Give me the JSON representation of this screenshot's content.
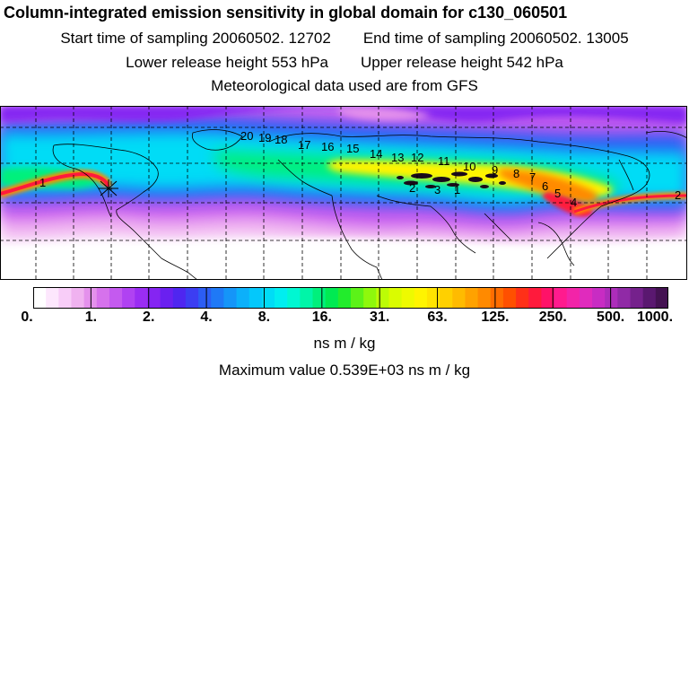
{
  "header": {
    "title": "Column-integrated emission sensitivity in global domain for c130_060501",
    "start_label": "Start time of sampling 20060502. 12702",
    "end_label": "End time of sampling 20060502. 13005",
    "lower_label": "Lower release height  553 hPa",
    "upper_label": "Upper release height  542 hPa",
    "met_label": "Meteorological data used are from GFS"
  },
  "colorbar": {
    "tick_labels": [
      "0.",
      "1.",
      "2.",
      "4.",
      "8.",
      "16.",
      "31.",
      "63.",
      "125.",
      "250.",
      "500.",
      "1000."
    ],
    "colors": [
      "#ffffff",
      "#fde7fd",
      "#f8cdf8",
      "#f0b2f0",
      "#e491ec",
      "#d672ec",
      "#c45aef",
      "#b042f2",
      "#9a2df3",
      "#8525f2",
      "#6a20f0",
      "#4f26f0",
      "#3c3ef2",
      "#2c5df4",
      "#1f79f6",
      "#1595f8",
      "#0cb0fa",
      "#04c8fb",
      "#00dcf6",
      "#00eef0",
      "#00f7d2",
      "#00f5a8",
      "#00f07c",
      "#00ea52",
      "#22ec2c",
      "#5cf218",
      "#8ef80c",
      "#bcfc06",
      "#dafc00",
      "#eefa00",
      "#fff400",
      "#ffe400",
      "#ffd000",
      "#ffbb00",
      "#ffa200",
      "#ff8a00",
      "#ff6d00",
      "#ff5000",
      "#ff3018",
      "#ff1a3c",
      "#ff1268",
      "#ff1b8e",
      "#f224a8",
      "#e02bbd",
      "#c82cc3",
      "#ad2dba",
      "#902aa6",
      "#75218c",
      "#5a1870",
      "#441252"
    ]
  },
  "units": "ns m / kg",
  "max_value": "Maximum value  0.539E+03 ns m / kg",
  "trajectory_labels": [
    "20",
    "19",
    "18",
    "17",
    "16",
    "15",
    "14",
    "13",
    "12",
    "11",
    "10",
    "9",
    "8",
    "7",
    "6",
    "5",
    "4",
    "3",
    "2",
    "1",
    "2",
    "1"
  ]
}
